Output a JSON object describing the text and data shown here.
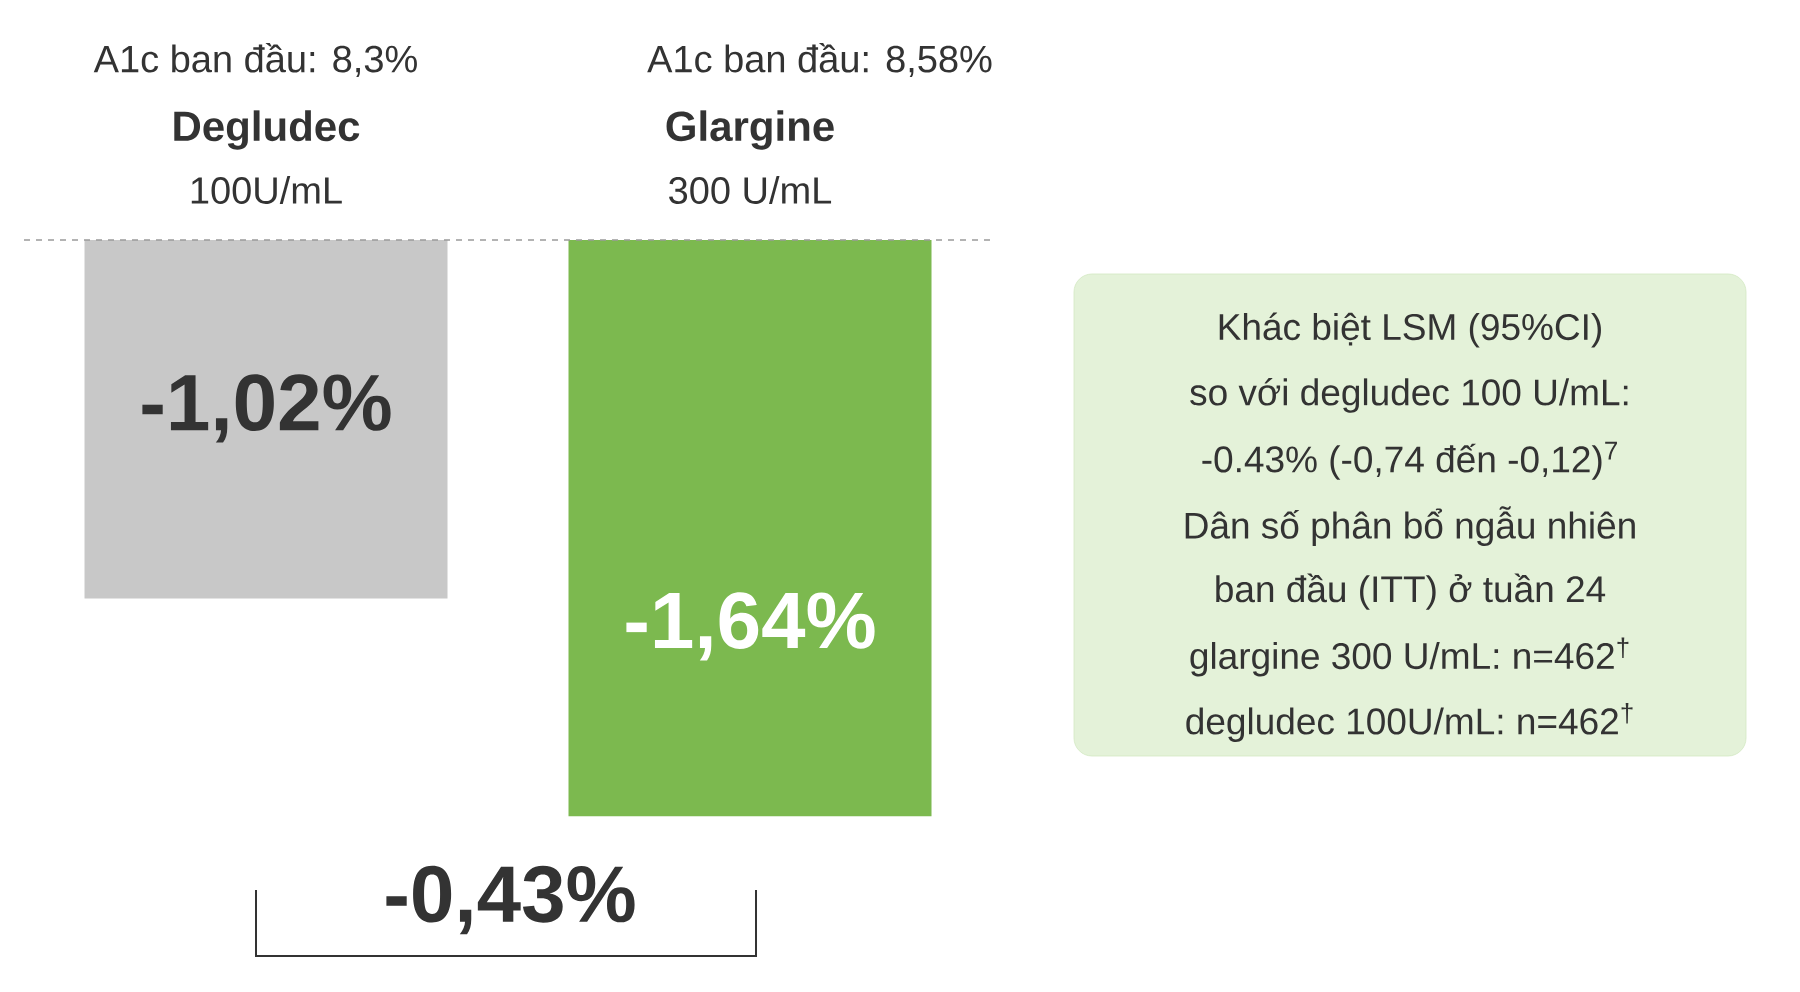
{
  "chart_data": {
    "type": "bar",
    "categories": [
      "Degludec",
      "Glargine"
    ],
    "values": [
      -1.02,
      -1.64
    ],
    "colors": [
      "#c8c8c8",
      "#7cb94f"
    ],
    "value_labels": [
      "-1,02%",
      "-1,64%"
    ],
    "ref_lines": [
      {
        "axis": "y",
        "value": 0,
        "color": "#9a9a9a",
        "line_style": "dashed"
      }
    ],
    "annotations": [
      "A1c ban đầu: 8,3%",
      "A1c ban đầu: 8,58%",
      "100U/mL",
      "300 U/mL",
      "Khác biệt LSM (95%CI)",
      "so với degludec 100 U/mL:",
      "-0.43% (-0,74 đến -0,12)$^{7}$",
      "Dân số phân bổ ngẫu nhiên",
      "ban đầu (ITT) ở tuần 24",
      "glargine 300 U/mL: n=462$^{†}$",
      "degludec 100U/mL: n=462$^{†}$",
      "-0,43%"
    ]
  }
}
